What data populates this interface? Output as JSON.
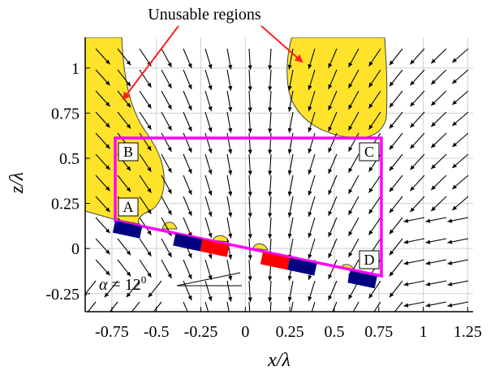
{
  "annotation": {
    "text": "Unusable regions"
  },
  "x_axis": {
    "label": "x/λ",
    "ticks": [
      "-0.75",
      "-0.5",
      "-0.25",
      "0",
      "0.25",
      "0.5",
      "0.75",
      "1",
      "1.25"
    ],
    "values": [
      -0.75,
      -0.5,
      -0.25,
      0,
      0.25,
      0.5,
      0.75,
      1,
      1.25
    ],
    "range": [
      -0.9,
      1.28
    ]
  },
  "y_axis": {
    "label": "z/λ",
    "ticks": [
      "1",
      "0.75",
      "0.5",
      "0.25",
      "0",
      "-0.25"
    ],
    "values": [
      1,
      0.75,
      0.5,
      0.25,
      0,
      -0.25
    ],
    "range": [
      -0.35,
      1.17
    ]
  },
  "points": [
    {
      "label": "A",
      "x": -0.75,
      "z": 0.17
    },
    {
      "label": "B",
      "x": -0.75,
      "z": 0.62
    },
    {
      "label": "C",
      "x": 0.71,
      "z": 0.62
    },
    {
      "label": "D",
      "x": 0.71,
      "z": -0.13
    }
  ],
  "angle_label": {
    "text": "α = 12",
    "sup": "0"
  },
  "colors": {
    "region": "#ffe32a",
    "frame": "#ff00ff",
    "blue": "#000080",
    "red": "#ff0000",
    "arrow_annot": "#ff2020",
    "grid": "#d0d0d0"
  }
}
